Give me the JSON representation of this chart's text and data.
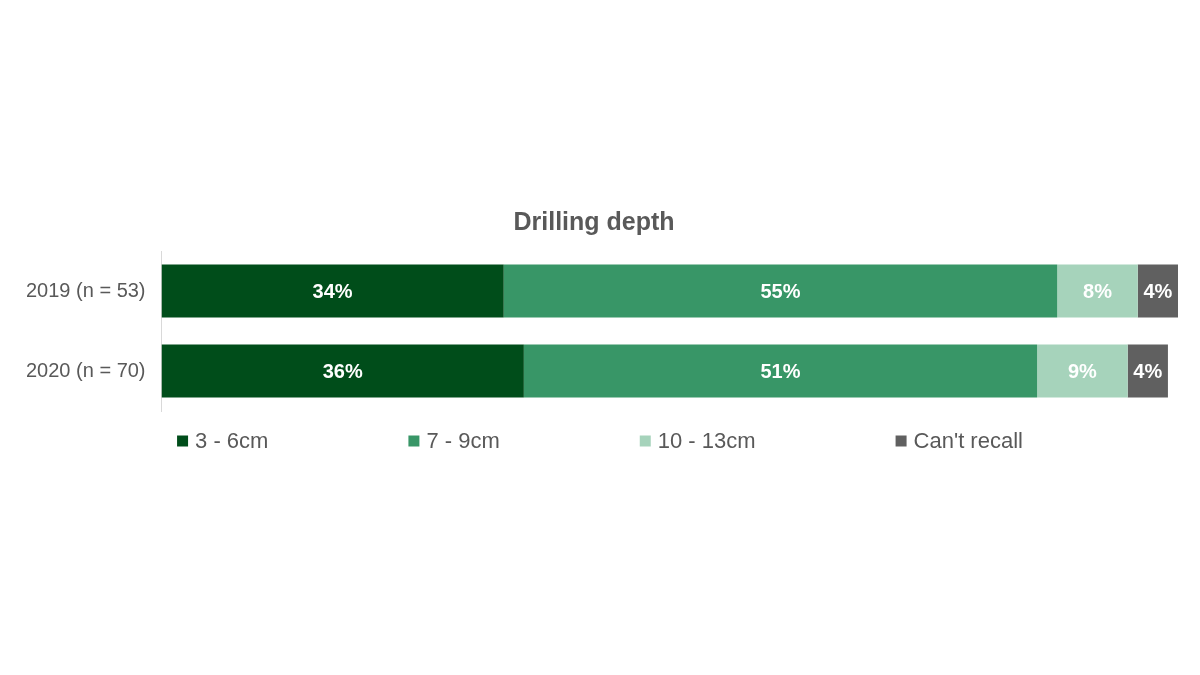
{
  "chart_data": {
    "type": "bar",
    "orientation": "horizontal",
    "stacked": true,
    "title": "Drilling depth",
    "categories": [
      "2019 (n = 53)",
      "2020 (n = 70)"
    ],
    "series": [
      {
        "name": "3 - 6cm",
        "color": "#004d1a",
        "values": [
          34,
          36
        ],
        "value_labels": [
          "34%",
          "36%"
        ]
      },
      {
        "name": "7 - 9cm",
        "color": "#389667",
        "values": [
          55,
          51
        ],
        "value_labels": [
          "55%",
          "51%"
        ]
      },
      {
        "name": "10 - 13cm",
        "color": "#a6d3bb",
        "values": [
          8,
          9
        ],
        "value_labels": [
          "8%",
          "9%"
        ]
      },
      {
        "name": "Can't recall",
        "color": "#606060",
        "values": [
          4,
          4
        ],
        "value_labels": [
          "4%",
          "4%"
        ]
      }
    ],
    "legend": "bottom"
  }
}
